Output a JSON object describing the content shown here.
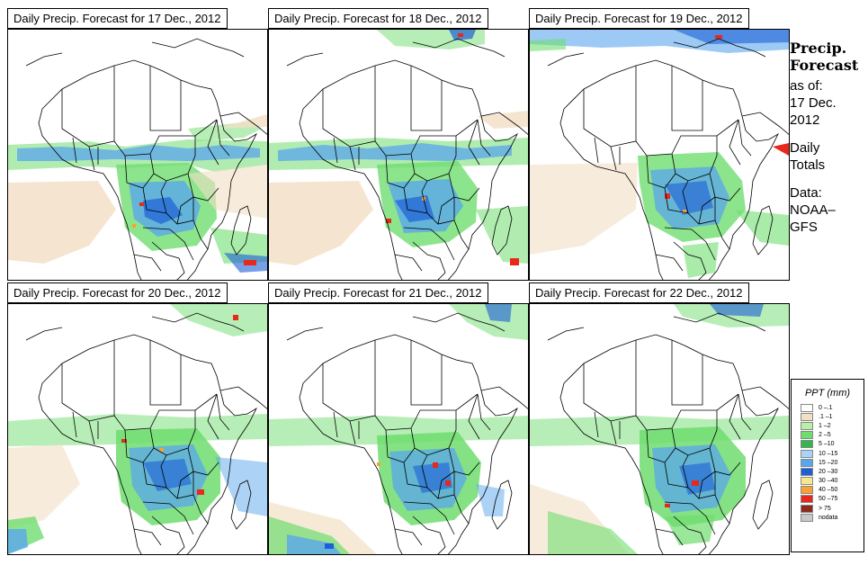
{
  "panels": [
    {
      "title": "Daily Precip. Forecast for  17 Dec., 2012"
    },
    {
      "title": "Daily Precip. Forecast for  18 Dec., 2012"
    },
    {
      "title": "Daily Precip. Forecast for  19 Dec., 2012"
    },
    {
      "title": "Daily Precip. Forecast for  20 Dec., 2012"
    },
    {
      "title": "Daily Precip. Forecast for  21 Dec., 2012"
    },
    {
      "title": "Daily Precip. Forecast for  22 Dec., 2012"
    }
  ],
  "info": {
    "heading1": "Precip.",
    "heading2": "Forecast",
    "asof": "as of:",
    "date1": "17 Dec.",
    "date2": "2012",
    "totals1": "Daily",
    "totals2": "Totals",
    "data1": "Data:",
    "data2": "NOAA–",
    "data3": "GFS"
  },
  "legend": {
    "title": "PPT (mm)",
    "items": [
      {
        "label": "0 –.1",
        "color": "#ffffff"
      },
      {
        "label": ".1 –1",
        "color": "#f2dfc4"
      },
      {
        "label": "1 –2",
        "color": "#b9f0a5"
      },
      {
        "label": "2 –5",
        "color": "#6fdd6f"
      },
      {
        "label": "5 –10",
        "color": "#35b54b"
      },
      {
        "label": "10 –15",
        "color": "#a9d4f5"
      },
      {
        "label": "15 –20",
        "color": "#5aa6ec"
      },
      {
        "label": "20 –30",
        "color": "#1d5fd6"
      },
      {
        "label": "30 –40",
        "color": "#f6e68c"
      },
      {
        "label": "40 –50",
        "color": "#f7a233"
      },
      {
        "label": "50 –75",
        "color": "#e8281c"
      },
      {
        "label": "> 75",
        "color": "#8c2a1c"
      },
      {
        "label": "nodata",
        "color": "#c8c8c8"
      }
    ]
  }
}
